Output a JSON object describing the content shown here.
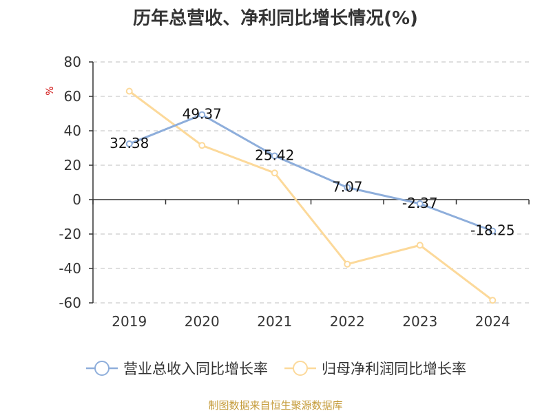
{
  "header": {
    "title": "历年总营收、净利同比增长情况(%)"
  },
  "source_text": "制图数据来自恒生聚源数据库",
  "chart_data": {
    "type": "line",
    "title": "历年总营收、净利同比增长情况(%)",
    "ylabel": "%",
    "xlabel": "",
    "categories": [
      "2019",
      "2020",
      "2021",
      "2022",
      "2023",
      "2024"
    ],
    "ylim": [
      -60,
      80
    ],
    "yticks": [
      "80",
      "60",
      "40",
      "20",
      "0",
      "-20",
      "-40",
      "-60"
    ],
    "grid": true,
    "legend_position": "bottom",
    "series": [
      {
        "name": "营业总收入同比增长率",
        "color": "#8eaedb",
        "values": [
          32.38,
          49.37,
          25.42,
          7.07,
          -2.37,
          -18.25
        ],
        "labels": [
          "32.38",
          "49.37",
          "25.42",
          "7.07",
          "-2.37",
          "-18.25"
        ]
      },
      {
        "name": "归母净利润同比增长率",
        "color": "#fcd99a",
        "values": [
          63,
          31.5,
          15.5,
          -37.5,
          -26.5,
          -58.5
        ]
      }
    ]
  }
}
